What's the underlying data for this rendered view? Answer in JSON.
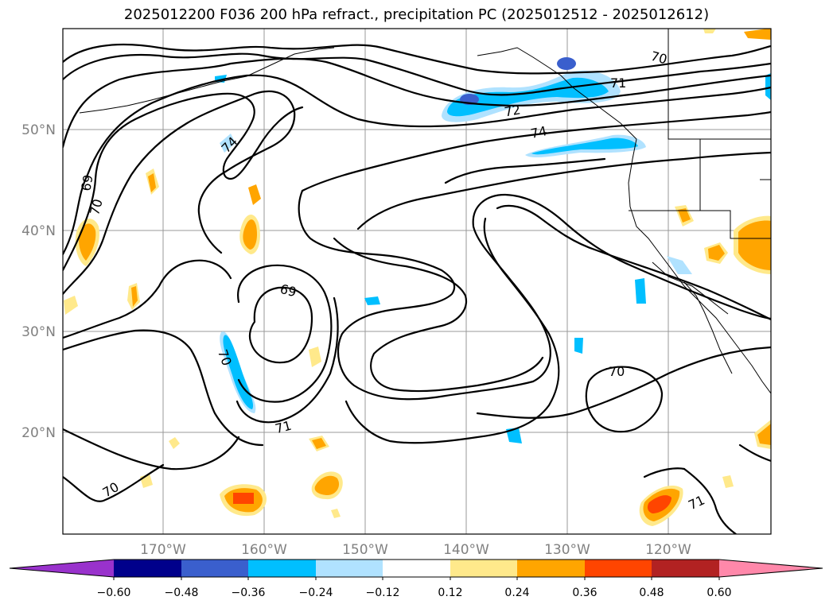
{
  "title": "2025012200 F036 200 hPa refract., precipitation PC (2025012512 - 2025012612)",
  "lat_labels": [
    "50°N",
    "40°N",
    "30°N",
    "20°N"
  ],
  "lon_labels": [
    "170°W",
    "160°W",
    "150°W",
    "140°W",
    "130°W",
    "120°W"
  ],
  "contour_labels": [
    "69",
    "70",
    "71",
    "72",
    "74"
  ],
  "colorbar": {
    "ticks": [
      "−0.60",
      "−0.48",
      "−0.36",
      "−0.24",
      "−0.12",
      "0.12",
      "0.24",
      "0.36",
      "0.48",
      "0.60"
    ],
    "colors": [
      "#9932cc",
      "#00008b",
      "#3a5fcd",
      "#00bfff",
      "#b0e2ff",
      "#ffffff",
      "#ffe98b",
      "#ffa500",
      "#ff4500",
      "#b22222",
      "#ff88aa"
    ]
  }
}
